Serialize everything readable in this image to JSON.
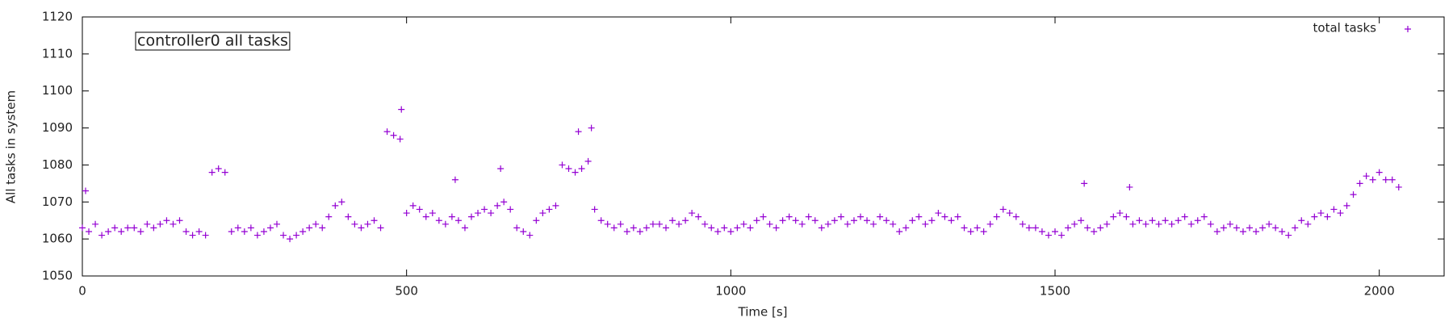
{
  "chart_data": {
    "type": "scatter",
    "annotation": "controller0 all tasks",
    "xlabel": "Time [s]",
    "ylabel": "All tasks in system",
    "xlim": [
      0,
      2100
    ],
    "ylim": [
      1050,
      1120
    ],
    "xticks": [
      0,
      500,
      1000,
      1500,
      2000
    ],
    "yticks": [
      1050,
      1060,
      1070,
      1080,
      1090,
      1100,
      1110,
      1120
    ],
    "legend": "top-right",
    "x": [
      0,
      10,
      20,
      30,
      40,
      50,
      60,
      70,
      80,
      90,
      100,
      110,
      120,
      130,
      140,
      150,
      160,
      170,
      180,
      190,
      200,
      210,
      220,
      230,
      240,
      250,
      260,
      270,
      280,
      290,
      300,
      310,
      320,
      330,
      340,
      350,
      360,
      370,
      380,
      390,
      400,
      410,
      420,
      430,
      440,
      450,
      460,
      470,
      480,
      490,
      500,
      510,
      520,
      530,
      540,
      550,
      560,
      570,
      580,
      590,
      600,
      610,
      620,
      630,
      640,
      650,
      660,
      670,
      680,
      690,
      700,
      710,
      720,
      730,
      740,
      750,
      760,
      770,
      780,
      790,
      800,
      810,
      820,
      830,
      840,
      850,
      860,
      870,
      880,
      890,
      900,
      910,
      920,
      930,
      940,
      950,
      960,
      970,
      980,
      990,
      1000,
      1010,
      1020,
      1030,
      1040,
      1050,
      1060,
      1070,
      1080,
      1090,
      1100,
      1110,
      1120,
      1130,
      1140,
      1150,
      1160,
      1170,
      1180,
      1190,
      1200,
      1210,
      1220,
      1230,
      1240,
      1250,
      1260,
      1270,
      1280,
      1290,
      1300,
      1310,
      1320,
      1330,
      1340,
      1350,
      1360,
      1370,
      1380,
      1390,
      1400,
      1410,
      1420,
      1430,
      1440,
      1450,
      1460,
      1470,
      1480,
      1490,
      1500,
      1510,
      1520,
      1530,
      1540,
      1550,
      1560,
      1570,
      1580,
      1590,
      1600,
      1610,
      1620,
      1630,
      1640,
      1650,
      1660,
      1670,
      1680,
      1690,
      1700,
      1710,
      1720,
      1730,
      1740,
      1750,
      1760,
      1770,
      1780,
      1790,
      1800,
      1810,
      1820,
      1830,
      1840,
      1850,
      1860,
      1870,
      1880,
      1890,
      1900,
      1910,
      1920,
      1930,
      1940,
      1950,
      1960,
      1970,
      1980,
      1990,
      2000,
      2010,
      2020,
      2030,
      5,
      492,
      575,
      645,
      765,
      785,
      1545,
      1615
    ],
    "series": [
      {
        "name": "total tasks",
        "color": "#9400d3",
        "values": [
          1063,
          1062,
          1064,
          1061,
          1062,
          1063,
          1062,
          1063,
          1063,
          1062,
          1064,
          1063,
          1064,
          1065,
          1064,
          1065,
          1062,
          1061,
          1062,
          1061,
          1078,
          1079,
          1078,
          1062,
          1063,
          1062,
          1063,
          1061,
          1062,
          1063,
          1064,
          1061,
          1060,
          1061,
          1062,
          1063,
          1064,
          1063,
          1066,
          1069,
          1070,
          1066,
          1064,
          1063,
          1064,
          1065,
          1063,
          1089,
          1088,
          1087,
          1067,
          1069,
          1068,
          1066,
          1067,
          1065,
          1064,
          1066,
          1065,
          1063,
          1066,
          1067,
          1068,
          1067,
          1069,
          1070,
          1068,
          1063,
          1062,
          1061,
          1065,
          1067,
          1068,
          1069,
          1080,
          1079,
          1078,
          1079,
          1081,
          1068,
          1065,
          1064,
          1063,
          1064,
          1062,
          1063,
          1062,
          1063,
          1064,
          1064,
          1063,
          1065,
          1064,
          1065,
          1067,
          1066,
          1064,
          1063,
          1062,
          1063,
          1062,
          1063,
          1064,
          1063,
          1065,
          1066,
          1064,
          1063,
          1065,
          1066,
          1065,
          1064,
          1066,
          1065,
          1063,
          1064,
          1065,
          1066,
          1064,
          1065,
          1066,
          1065,
          1064,
          1066,
          1065,
          1064,
          1062,
          1063,
          1065,
          1066,
          1064,
          1065,
          1067,
          1066,
          1065,
          1066,
          1063,
          1062,
          1063,
          1062,
          1064,
          1066,
          1068,
          1067,
          1066,
          1064,
          1063,
          1063,
          1062,
          1061,
          1062,
          1061,
          1063,
          1064,
          1065,
          1063,
          1062,
          1063,
          1064,
          1066,
          1067,
          1066,
          1064,
          1065,
          1064,
          1065,
          1064,
          1065,
          1064,
          1065,
          1066,
          1064,
          1065,
          1066,
          1064,
          1062,
          1063,
          1064,
          1063,
          1062,
          1063,
          1062,
          1063,
          1064,
          1063,
          1062,
          1061,
          1063,
          1065,
          1064,
          1066,
          1067,
          1066,
          1068,
          1067,
          1069,
          1072,
          1075,
          1077,
          1076,
          1078,
          1076,
          1076,
          1074,
          1073,
          1095,
          1076,
          1079,
          1089,
          1090,
          1075,
          1074
        ]
      }
    ]
  }
}
